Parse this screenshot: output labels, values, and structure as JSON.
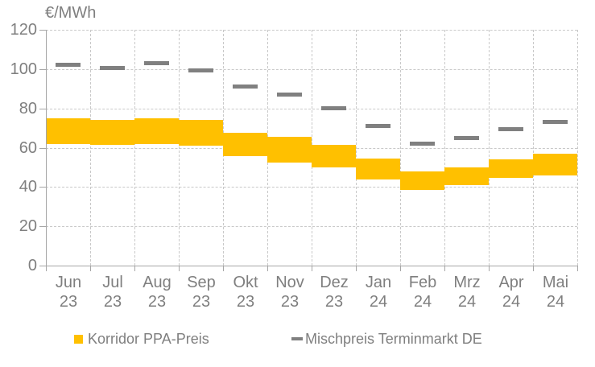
{
  "chart_data": {
    "type": "bar",
    "subtype": "floating-range-bands-with-dash-markers",
    "title": "€/MWh",
    "categories": [
      "Jun 23",
      "Jul 23",
      "Aug 23",
      "Sep 23",
      "Okt 23",
      "Nov 23",
      "Dez 23",
      "Jan 24",
      "Feb 24",
      "Mrz 24",
      "Apr 24",
      "Mai 24"
    ],
    "months": [
      "Jun",
      "Jul",
      "Aug",
      "Sep",
      "Okt",
      "Nov",
      "Dez",
      "Jan",
      "Feb",
      "Mrz",
      "Apr",
      "Mai"
    ],
    "years": [
      "23",
      "23",
      "23",
      "23",
      "23",
      "23",
      "23",
      "24",
      "24",
      "24",
      "24",
      "24"
    ],
    "series": [
      {
        "name": "Korridor PPA-Preis",
        "type": "range-band",
        "color": "#FFC000",
        "low": [
          62,
          61.5,
          62,
          61,
          55.5,
          52.5,
          50,
          44,
          38.5,
          41,
          44.5,
          46
        ],
        "high": [
          75,
          74,
          75,
          74,
          67.5,
          65.5,
          61.5,
          54.5,
          48,
          50,
          54,
          57
        ]
      },
      {
        "name": "Mischpreis Terminmarkt DE",
        "type": "dash-marker",
        "color": "#808080",
        "values": [
          102,
          100.5,
          103,
          99.5,
          91,
          87,
          80,
          71,
          62,
          65,
          69.5,
          73
        ]
      }
    ],
    "ylabel": "€/MWh",
    "ylim": [
      0,
      120
    ],
    "ytick_step": 20,
    "grid": true,
    "legend_position": "bottom"
  }
}
